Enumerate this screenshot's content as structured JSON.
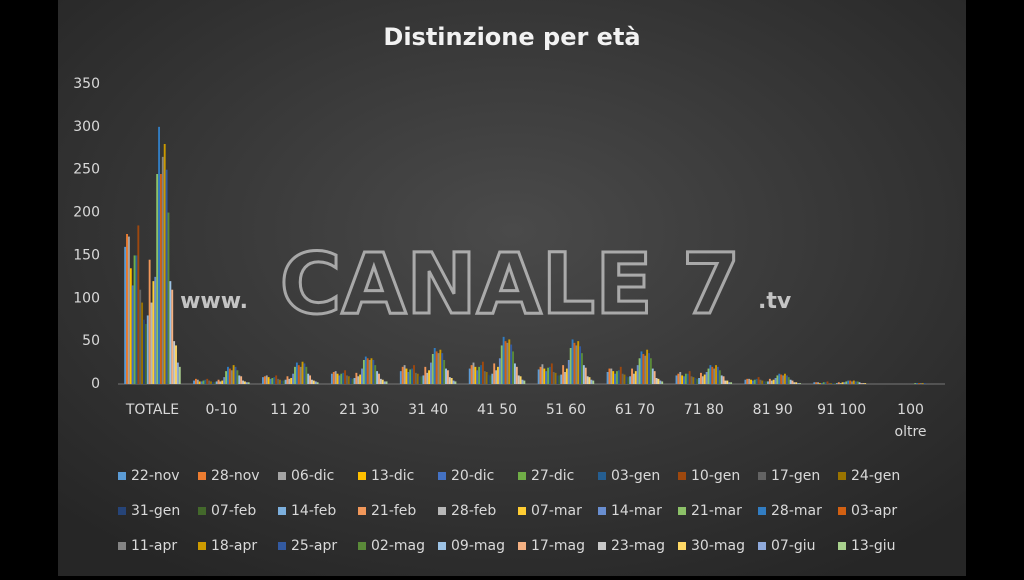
{
  "chart_data": {
    "type": "bar",
    "title": "Distinzione  per età",
    "watermark": {
      "left": "www.",
      "center": "CANALE 7",
      "right": ".tv"
    },
    "categories": [
      "TOTALE",
      "0-10",
      "11 20",
      "21 30",
      "31 40",
      "41 50",
      "51 60",
      "61 70",
      "71 80",
      "81 90",
      "91 100",
      "100 oltre"
    ],
    "ylim": [
      0,
      350
    ],
    "yticks": [
      0,
      50,
      100,
      150,
      200,
      250,
      300,
      350
    ],
    "grid": false,
    "series": [
      {
        "name": "22-nov",
        "color": "#5b9bd5",
        "values": [
          160,
          4,
          8,
          12,
          15,
          18,
          17,
          14,
          10,
          5,
          2,
          0
        ]
      },
      {
        "name": "28-nov",
        "color": "#ed7d31",
        "values": [
          175,
          6,
          9,
          14,
          20,
          22,
          20,
          18,
          12,
          6,
          2,
          0
        ]
      },
      {
        "name": "06-dic",
        "color": "#a5a5a5",
        "values": [
          172,
          5,
          10,
          15,
          22,
          25,
          23,
          18,
          14,
          6,
          2,
          0
        ]
      },
      {
        "name": "13-dic",
        "color": "#ffc000",
        "values": [
          135,
          3,
          8,
          12,
          18,
          20,
          18,
          15,
          10,
          5,
          1,
          0
        ]
      },
      {
        "name": "20-dic",
        "color": "#4472c4",
        "values": [
          115,
          3,
          6,
          10,
          14,
          16,
          15,
          12,
          9,
          4,
          1,
          0
        ]
      },
      {
        "name": "27-dic",
        "color": "#70ad47",
        "values": [
          150,
          4,
          7,
          12,
          17,
          20,
          19,
          15,
          12,
          5,
          2,
          0
        ]
      },
      {
        "name": "03-gen",
        "color": "#255e91",
        "values": [
          150,
          5,
          8,
          13,
          18,
          22,
          20,
          16,
          12,
          6,
          2,
          0
        ]
      },
      {
        "name": "10-gen",
        "color": "#9e480e",
        "values": [
          185,
          6,
          10,
          16,
          22,
          26,
          24,
          20,
          15,
          8,
          3,
          0
        ]
      },
      {
        "name": "17-gen",
        "color": "#636363",
        "values": [
          110,
          4,
          6,
          10,
          13,
          15,
          14,
          12,
          9,
          5,
          1,
          0
        ]
      },
      {
        "name": "24-gen",
        "color": "#997300",
        "values": [
          95,
          3,
          5,
          9,
          12,
          14,
          13,
          11,
          8,
          4,
          1,
          0
        ]
      },
      {
        "name": "31-gen",
        "color": "#264478",
        "values": [
          75,
          2,
          4,
          7,
          9,
          11,
          10,
          9,
          7,
          3,
          1,
          0
        ]
      },
      {
        "name": "07-feb",
        "color": "#43682b",
        "values": [
          70,
          2,
          4,
          6,
          9,
          10,
          10,
          8,
          6,
          3,
          1,
          0
        ]
      },
      {
        "name": "14-feb",
        "color": "#7cafdd",
        "values": [
          80,
          3,
          5,
          7,
          10,
          12,
          11,
          9,
          7,
          3,
          1,
          0
        ]
      },
      {
        "name": "21-feb",
        "color": "#f1975a",
        "values": [
          145,
          5,
          9,
          13,
          20,
          24,
          22,
          18,
          13,
          6,
          2,
          0
        ]
      },
      {
        "name": "28-feb",
        "color": "#b7b7b7",
        "values": [
          95,
          3,
          6,
          9,
          13,
          16,
          14,
          12,
          9,
          4,
          1,
          0
        ]
      },
      {
        "name": "07-mar",
        "color": "#ffcd33",
        "values": [
          120,
          4,
          7,
          11,
          16,
          20,
          18,
          15,
          11,
          5,
          2,
          0
        ]
      },
      {
        "name": "14-mar",
        "color": "#698ed0",
        "values": [
          125,
          8,
          12,
          18,
          25,
          30,
          28,
          22,
          14,
          7,
          2,
          0
        ]
      },
      {
        "name": "21-mar",
        "color": "#8cc168",
        "values": [
          245,
          15,
          20,
          28,
          35,
          45,
          42,
          30,
          18,
          10,
          3,
          1
        ]
      },
      {
        "name": "28-mar",
        "color": "#327dc2",
        "values": [
          300,
          20,
          25,
          32,
          42,
          55,
          52,
          38,
          22,
          12,
          4,
          1
        ]
      },
      {
        "name": "03-apr",
        "color": "#d26012",
        "values": [
          245,
          18,
          22,
          30,
          38,
          50,
          48,
          35,
          20,
          11,
          4,
          1
        ]
      },
      {
        "name": "11-apr",
        "color": "#848484",
        "values": [
          265,
          16,
          20,
          28,
          36,
          48,
          45,
          33,
          18,
          10,
          3,
          1
        ]
      },
      {
        "name": "18-apr",
        "color": "#cc9a00",
        "values": [
          280,
          22,
          26,
          30,
          40,
          52,
          50,
          40,
          22,
          12,
          4,
          1
        ]
      },
      {
        "name": "25-apr",
        "color": "#335aa1",
        "values": [
          250,
          20,
          24,
          28,
          36,
          46,
          44,
          36,
          20,
          10,
          3,
          1
        ]
      },
      {
        "name": "02-mag",
        "color": "#5a8a39",
        "values": [
          200,
          16,
          20,
          22,
          28,
          38,
          36,
          30,
          16,
          8,
          3,
          0
        ]
      },
      {
        "name": "09-mag",
        "color": "#9dc3e6",
        "values": [
          120,
          10,
          12,
          15,
          18,
          24,
          22,
          18,
          10,
          5,
          2,
          0
        ]
      },
      {
        "name": "17-mag",
        "color": "#f4b183",
        "values": [
          110,
          9,
          10,
          12,
          16,
          20,
          19,
          15,
          9,
          4,
          1,
          0
        ]
      },
      {
        "name": "23-mag",
        "color": "#c9c9c9",
        "values": [
          50,
          4,
          5,
          6,
          8,
          10,
          9,
          7,
          4,
          2,
          1,
          0
        ]
      },
      {
        "name": "30-mag",
        "color": "#ffd966",
        "values": [
          45,
          3,
          4,
          5,
          7,
          9,
          8,
          6,
          4,
          2,
          1,
          0
        ]
      },
      {
        "name": "07-giu",
        "color": "#8faadc",
        "values": [
          25,
          2,
          3,
          3,
          4,
          5,
          5,
          4,
          2,
          1,
          0,
          0
        ]
      },
      {
        "name": "13-giu",
        "color": "#a9d18e",
        "values": [
          20,
          2,
          2,
          3,
          3,
          4,
          4,
          3,
          2,
          1,
          0,
          0
        ]
      }
    ]
  }
}
